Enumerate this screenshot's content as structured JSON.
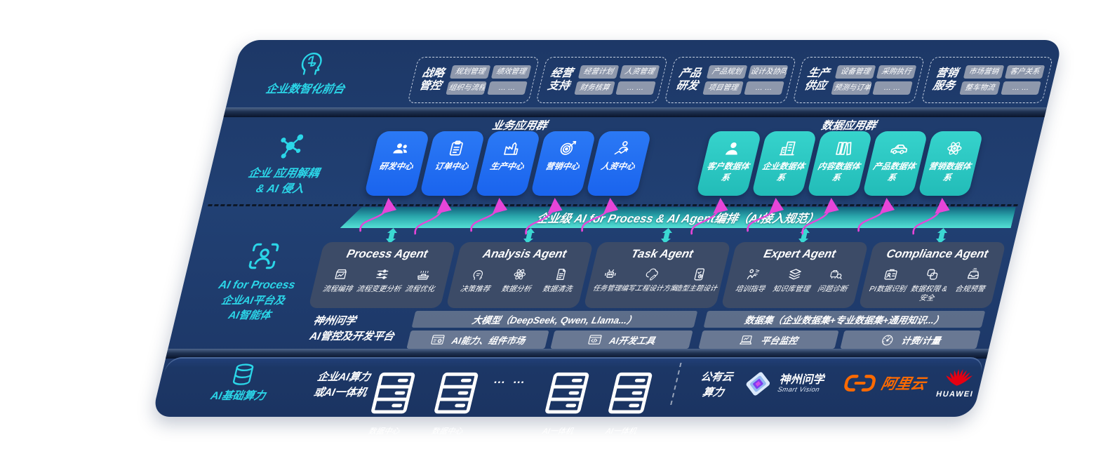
{
  "front_office": {
    "label": "企业数智化前台",
    "icon": "head-brain-icon",
    "groups": [
      {
        "title": "战略管控",
        "chips": [
          "规划管理",
          "绩效管理",
          "组织与流程",
          "… …"
        ]
      },
      {
        "title": "经营支持",
        "chips": [
          "经营计划",
          "人资管理",
          "财务核算",
          "… …"
        ]
      },
      {
        "title": "产品研发",
        "chips": [
          "产品规划",
          "设计及协同",
          "项目管理",
          "… …"
        ]
      },
      {
        "title": "生产供应",
        "chips": [
          "设备管理",
          "采购执行",
          "预测与订单",
          "… …"
        ]
      },
      {
        "title": "营销服务",
        "chips": [
          "市场营销",
          "客户关系",
          "整车物流",
          "… …"
        ]
      }
    ]
  },
  "app_layer": {
    "icon": "molecule-icon",
    "label_line1": "企业 应用解耦",
    "label_line2": "& AI 侵入",
    "business_title": "业务应用群",
    "business_tiles": [
      {
        "label": "研发中心",
        "icon": "team-icon"
      },
      {
        "label": "订单中心",
        "icon": "clipboard-icon"
      },
      {
        "label": "生产中心",
        "icon": "factory-icon"
      },
      {
        "label": "营销中心",
        "icon": "target-icon"
      },
      {
        "label": "人资中心",
        "icon": "person-growth-icon"
      }
    ],
    "data_title": "数据应用群",
    "data_tiles": [
      {
        "label": "客户数据体系",
        "icon": "person-icon"
      },
      {
        "label": "企业数据体系",
        "icon": "building-icon"
      },
      {
        "label": "内容数据体系",
        "icon": "books-icon"
      },
      {
        "label": "产品数据体系",
        "icon": "car-icon"
      },
      {
        "label": "营销数据体系",
        "icon": "atom-icon"
      }
    ]
  },
  "ai_layer": {
    "icon": "scan-person-icon",
    "label_line1": "AI for Process",
    "label_line2": "企业AI平台及",
    "label_line3": "AI智能体",
    "orchestration_bar": "企业级 AI for Process & AI Agent编排（AI接入规范）",
    "agents": [
      {
        "title": "Process Agent",
        "items": [
          {
            "label": "流程编排",
            "icon": "flow-monitor-icon"
          },
          {
            "label": "流程变更分析",
            "icon": "sliders-icon"
          },
          {
            "label": "流程优化",
            "icon": "conveyor-icon"
          }
        ]
      },
      {
        "title": "Analysis Agent",
        "items": [
          {
            "label": "决策推荐",
            "icon": "head-chat-icon"
          },
          {
            "label": "数据分析",
            "icon": "atom-icon"
          },
          {
            "label": "数据清洗",
            "icon": "document-icon"
          }
        ]
      },
      {
        "title": "Task Agent",
        "items": [
          {
            "label": "任务管理",
            "icon": "robot-icon"
          },
          {
            "label": "编写工程设计方案",
            "icon": "cloud-pen-icon"
          },
          {
            "label": "造型主题设计",
            "icon": "tablet-check-icon"
          }
        ]
      },
      {
        "title": "Expert Agent",
        "items": [
          {
            "label": "培训指导",
            "icon": "trainer-icon"
          },
          {
            "label": "知识库管理",
            "icon": "layers-icon"
          },
          {
            "label": "问题诊断",
            "icon": "diagnose-icon"
          }
        ]
      },
      {
        "title": "Compliance Agent",
        "items": [
          {
            "label": "PI数据识别",
            "icon": "id-card-icon"
          },
          {
            "label": "数据权限 & 安全",
            "icon": "link-lock-icon"
          },
          {
            "label": "合规预警",
            "icon": "tray-icon"
          }
        ]
      }
    ],
    "platform": {
      "label_line1": "神州问学",
      "label_line2": "AI管控及开发平台",
      "model_bar": "大模型（DeepSeek, Qwen, Llama...）",
      "dataset_bar": "数据集（企业数据集+专业数据集+通用知识...）",
      "cells": [
        {
          "label": "AI能力、组件市场",
          "icon": "window-gear-icon"
        },
        {
          "label": "AI开发工具",
          "icon": "window-code-icon"
        },
        {
          "label": "平台监控",
          "icon": "laptop-chart-icon"
        },
        {
          "label": "计费/计量",
          "icon": "gauge-icon"
        }
      ]
    }
  },
  "compute_layer": {
    "icon": "database-icon",
    "label": "AI基础算力",
    "enterprise_line1": "企业AI算力",
    "enterprise_line2": "或AI一体机",
    "nodes": [
      {
        "label": "数据中心",
        "icon": "server-icon"
      },
      {
        "label": "数据中心",
        "icon": "server-icon"
      },
      {
        "label": "… …",
        "icon": ""
      },
      {
        "label": "AI一体机",
        "icon": "server-icon"
      },
      {
        "label": "AI一体机",
        "icon": "server-icon"
      }
    ],
    "public_cloud_line1": "公有云",
    "public_cloud_line2": "算力",
    "vendors": {
      "smart_vision_name": "神州问学",
      "smart_vision_sub": "Smart Vision",
      "aliyun": "阿里云",
      "huawei": "HUAWEI"
    }
  },
  "colors": {
    "panel_navy": "#1e3a6b",
    "accent_cyan": "#2bd6e8",
    "tile_blue": "#1d6ff2",
    "tile_teal": "#2bc9c3",
    "arrow_pink": "#e645d8",
    "orchestration_teal": "#3ed3c8",
    "aliyun_orange": "#ff6a00",
    "huawei_red": "#e60012"
  }
}
